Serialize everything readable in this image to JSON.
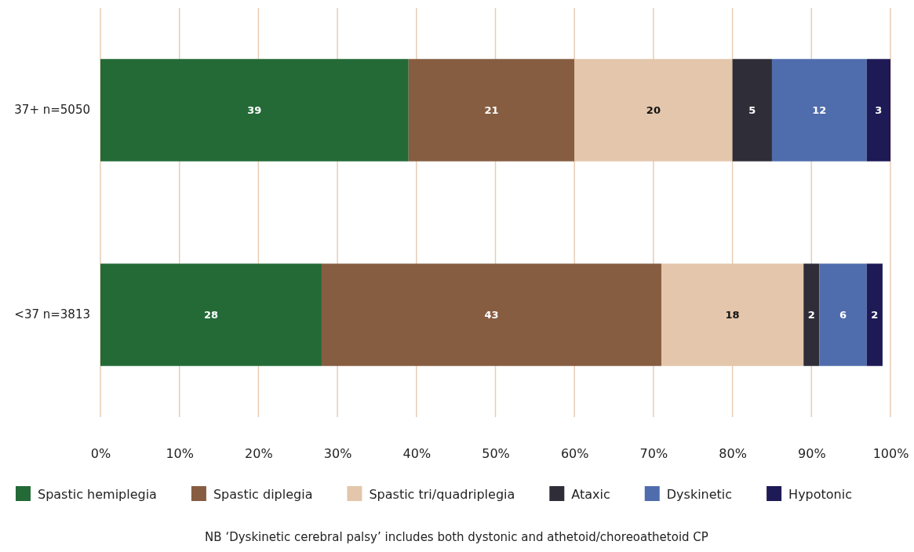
{
  "chart_data": {
    "type": "bar",
    "orientation": "horizontal",
    "stacked": true,
    "categories": [
      "37+ n=5050",
      "<37 n=3813"
    ],
    "series": [
      {
        "name": "Spastic hemiplegia",
        "color": "#236a37",
        "values": [
          39,
          28
        ]
      },
      {
        "name": "Spastic diplegia",
        "color": "#875d41",
        "values": [
          21,
          43
        ]
      },
      {
        "name": "Spastic tri/quadriplegia",
        "color": "#e3c6ab",
        "values": [
          20,
          18
        ]
      },
      {
        "name": "Ataxic",
        "color": "#2f2e38",
        "values": [
          5,
          2
        ]
      },
      {
        "name": "Dyskinetic",
        "color": "#4f6dad",
        "values": [
          12,
          6
        ]
      },
      {
        "name": "Hypotonic",
        "color": "#1e1a56",
        "values": [
          3,
          2
        ]
      }
    ],
    "xlim": [
      0,
      100
    ],
    "xticks": [
      {
        "value": 0,
        "label": "0%"
      },
      {
        "value": 10,
        "label": "10%"
      },
      {
        "value": 20,
        "label": "20%"
      },
      {
        "value": 30,
        "label": "30%"
      },
      {
        "value": 40,
        "label": "40%"
      },
      {
        "value": 50,
        "label": "50%"
      },
      {
        "value": 60,
        "label": "60%"
      },
      {
        "value": 70,
        "label": "70%"
      },
      {
        "value": 80,
        "label": "80%"
      },
      {
        "value": 90,
        "label": "90%"
      },
      {
        "value": 100,
        "label": "100%"
      }
    ],
    "grid": "x",
    "data_labels": true,
    "legend": "bottom",
    "annotations": [
      "NB ‘Dyskinetic cerebral palsy’ includes both dystonic and athetoid/choreoathetoid CP"
    ]
  }
}
